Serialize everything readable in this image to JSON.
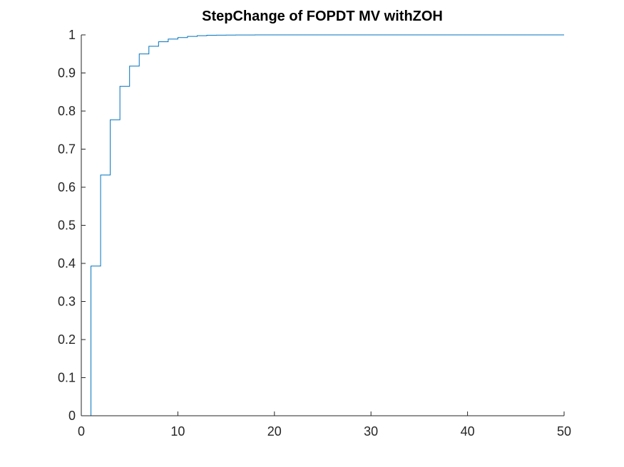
{
  "chart_data": {
    "type": "line",
    "title": "StepChange of FOPDT MV withZOH",
    "xlabel": "",
    "ylabel": "",
    "xlim": [
      0,
      50
    ],
    "ylim": [
      0,
      1
    ],
    "xticks": [
      0,
      10,
      20,
      30,
      40,
      50
    ],
    "yticks": [
      0,
      0.1,
      0.2,
      0.3,
      0.4,
      0.5,
      0.6,
      0.7,
      0.8,
      0.9,
      1
    ],
    "xtick_labels": [
      "0",
      "10",
      "20",
      "30",
      "40",
      "50"
    ],
    "ytick_labels": [
      "0",
      "0.1",
      "0.2",
      "0.3",
      "0.4",
      "0.5",
      "0.6",
      "0.7",
      "0.8",
      "0.9",
      "1"
    ],
    "grid": false,
    "legend": "none",
    "step_style": "zero-order-hold",
    "series": [
      {
        "color": "#0072BD",
        "x": [
          0,
          1,
          2,
          3,
          4,
          5,
          6,
          7,
          8,
          9,
          10,
          11,
          12,
          13,
          14,
          15,
          16,
          17,
          18,
          19,
          20,
          50
        ],
        "y": [
          0,
          0.393,
          0.632,
          0.777,
          0.865,
          0.918,
          0.95,
          0.97,
          0.982,
          0.989,
          0.993,
          0.996,
          0.998,
          0.999,
          0.9993,
          0.9996,
          0.9997,
          0.9998,
          0.9999,
          0.99995,
          1,
          1
        ]
      }
    ]
  }
}
